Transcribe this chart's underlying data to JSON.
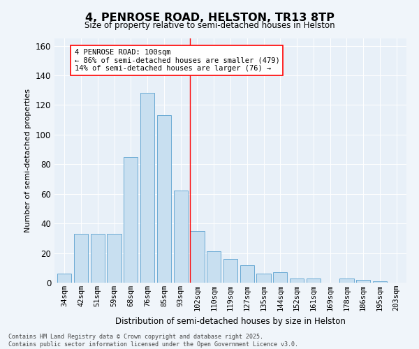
{
  "title": "4, PENROSE ROAD, HELSTON, TR13 8TP",
  "subtitle": "Size of property relative to semi-detached houses in Helston",
  "xlabel": "Distribution of semi-detached houses by size in Helston",
  "ylabel": "Number of semi-detached properties",
  "categories": [
    "34sqm",
    "42sqm",
    "51sqm",
    "59sqm",
    "68sqm",
    "76sqm",
    "85sqm",
    "93sqm",
    "102sqm",
    "110sqm",
    "119sqm",
    "127sqm",
    "135sqm",
    "144sqm",
    "152sqm",
    "161sqm",
    "169sqm",
    "178sqm",
    "186sqm",
    "195sqm",
    "203sqm"
  ],
  "values": [
    6,
    33,
    33,
    33,
    85,
    128,
    113,
    62,
    35,
    21,
    16,
    12,
    6,
    7,
    3,
    3,
    0,
    3,
    2,
    1,
    0
  ],
  "bar_color": "#c8dff0",
  "bar_edge_color": "#6aaad4",
  "plot_bg_color": "#e8f0f8",
  "fig_bg_color": "#f0f5fa",
  "red_line_x": 7.57,
  "annotation_title": "4 PENROSE ROAD: 100sqm",
  "annotation_line1": "← 86% of semi-detached houses are smaller (479)",
  "annotation_line2": "14% of semi-detached houses are larger (76) →",
  "footer_line1": "Contains HM Land Registry data © Crown copyright and database right 2025.",
  "footer_line2": "Contains public sector information licensed under the Open Government Licence v3.0.",
  "ylim_max": 165,
  "yticks": [
    0,
    20,
    40,
    60,
    80,
    100,
    120,
    140,
    160
  ]
}
